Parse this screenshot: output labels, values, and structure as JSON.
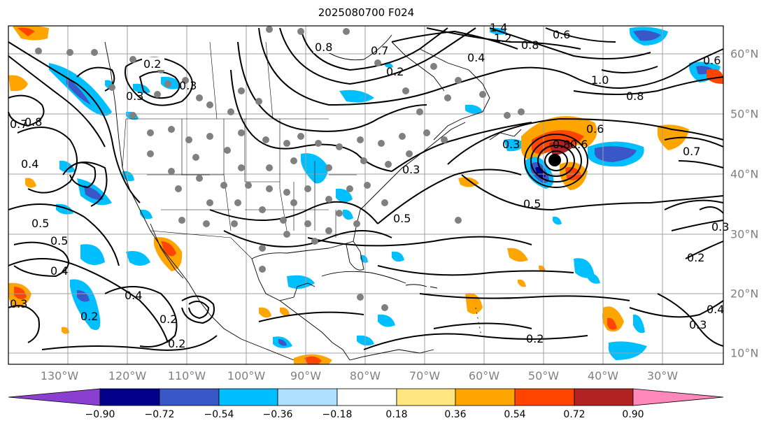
{
  "title": "2025080700 F024",
  "lon_labels": [
    "130°W",
    "120°W",
    "110°W",
    "100°W",
    "90°W",
    "80°W",
    "70°W",
    "60°W",
    "50°W",
    "40°W",
    "30°W"
  ],
  "lat_labels": [
    "60°N",
    "50°N",
    "40°N",
    "30°N",
    "20°N",
    "10°N"
  ],
  "colorbar": {
    "ticks": [
      "−0.90",
      "−0.72",
      "−0.54",
      "−0.36",
      "−0.18",
      "0.18",
      "0.36",
      "0.54",
      "0.72",
      "0.90"
    ],
    "colors": [
      "#8b3fd0",
      "#00008b",
      "#3a57c8",
      "#00bfff",
      "#b0e0ff",
      "#ffffff",
      "#ffe680",
      "#ffa500",
      "#ff4500",
      "#b22222",
      "#ff88bb"
    ]
  },
  "contour_labels": [
    "0.2",
    "0.8",
    "0.7",
    "0.4",
    "1.2",
    "1.4",
    "0.6",
    "0.2",
    "0.8",
    "0.6",
    "1.0",
    "0.8",
    "0.6",
    "0.3",
    "0.6",
    "0.8",
    "0.7",
    "0.3",
    "0.5",
    "0.5",
    "0.3",
    "0.5",
    "0.4",
    "0.4",
    "0.2",
    "0.2",
    "0.3",
    "0.5",
    "0.2",
    "0.7",
    "0.8",
    "0.2",
    "0.3",
    "0.4",
    "0.2",
    "0.3",
    "0.4",
    "0.3"
  ],
  "marker": {
    "lon": -48.5,
    "lat": 42.5
  }
}
